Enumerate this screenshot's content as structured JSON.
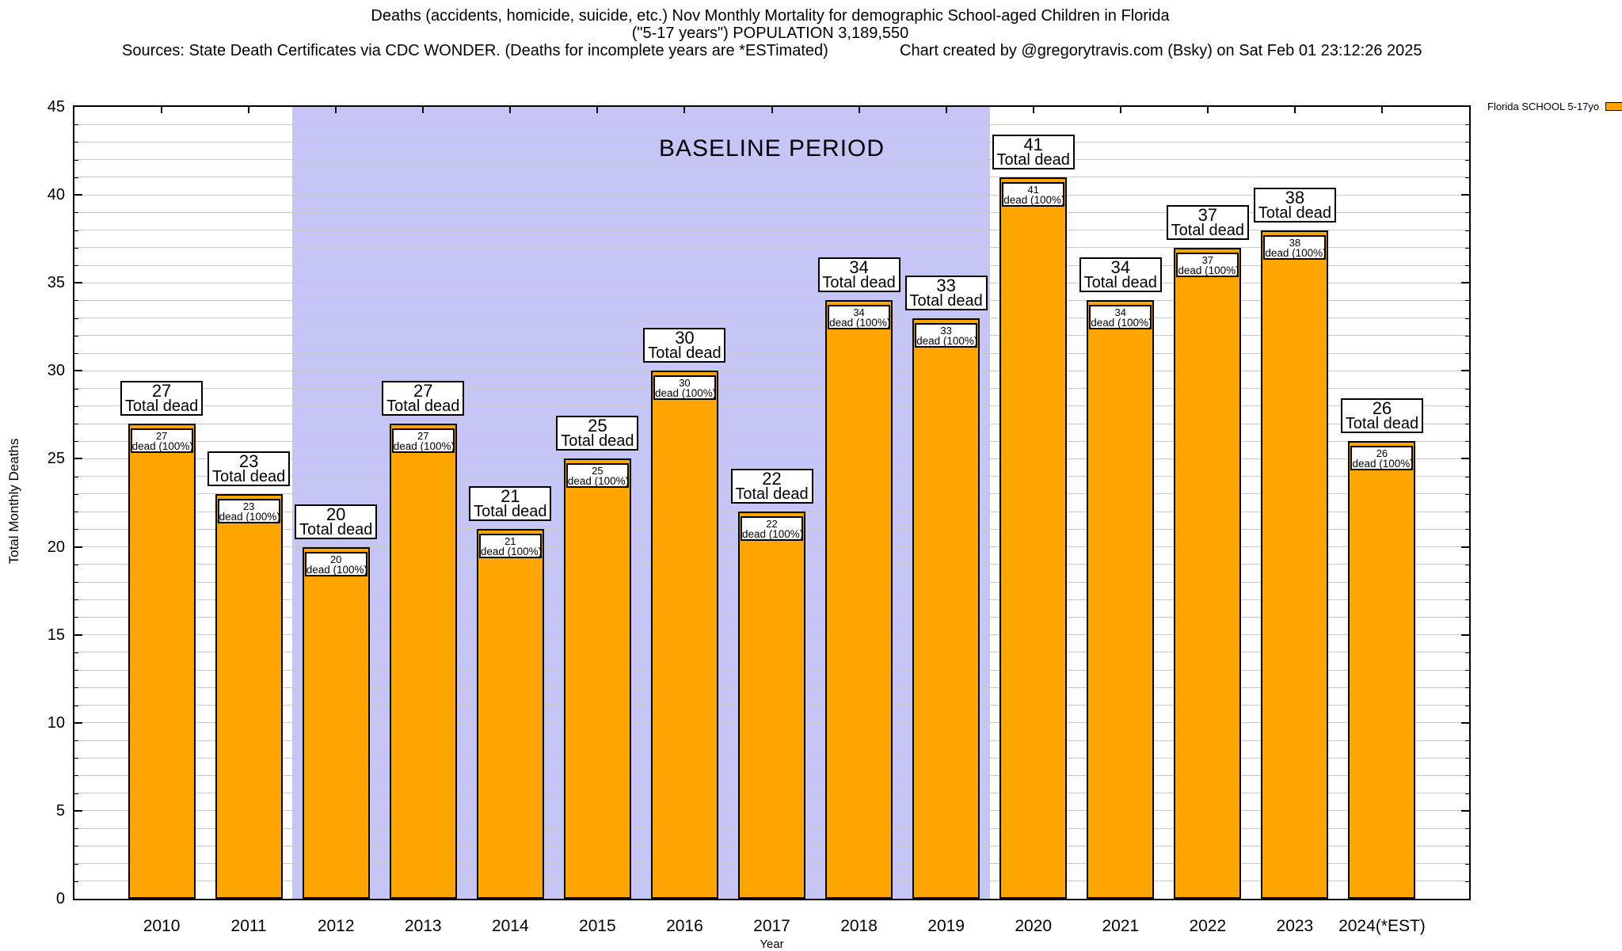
{
  "header": {
    "title_line1": "Deaths (accidents, homicide, suicide, etc.) Nov Monthly Mortality for demographic School-aged Children in Florida",
    "title_line2": "(\"5-17 years\") POPULATION 3,189,550",
    "sources": "Sources: State Death Certificates via CDC WONDER. (Deaths for incomplete years are *ESTimated)",
    "credit": "Chart created by @gregorytravis.com (Bsky) on Sat Feb 01 23:12:26 2025"
  },
  "legend": {
    "label": "Florida SCHOOL 5-17yo",
    "swatch_color": "#ffa500"
  },
  "chart_data": {
    "type": "bar",
    "title": "Deaths (accidents, homicide, suicide, etc.) Nov Monthly Mortality for demographic School-aged Children in Florida (\"5-17 years\") POPULATION 3,189,550",
    "categories": [
      "2010",
      "2011",
      "2012",
      "2013",
      "2014",
      "2015",
      "2016",
      "2017",
      "2018",
      "2019",
      "2020",
      "2021",
      "2022",
      "2023",
      "2024(*EST)"
    ],
    "values": [
      27,
      23,
      20,
      27,
      21,
      25,
      30,
      22,
      34,
      33,
      41,
      34,
      37,
      38,
      26
    ],
    "xlabel": "Year",
    "ylabel": "Total Monthly Deaths",
    "ylim": [
      0,
      45
    ],
    "ytick_step": 5,
    "grid": "horizontal minor gridlines every 1 unit",
    "legend_position": "top-right outside plot",
    "bar_color": "#ffa500",
    "bar_border_color": "#000000",
    "bar_top_label_suffix": "Total dead",
    "bar_inner_label_prefix": "dead (",
    "bar_inner_label": "dead (100%)",
    "annotations": {
      "baseline": {
        "label": "BASELINE PERIOD",
        "start_category": "2012",
        "end_category": "2019",
        "color": "#c5c5f6"
      }
    }
  }
}
